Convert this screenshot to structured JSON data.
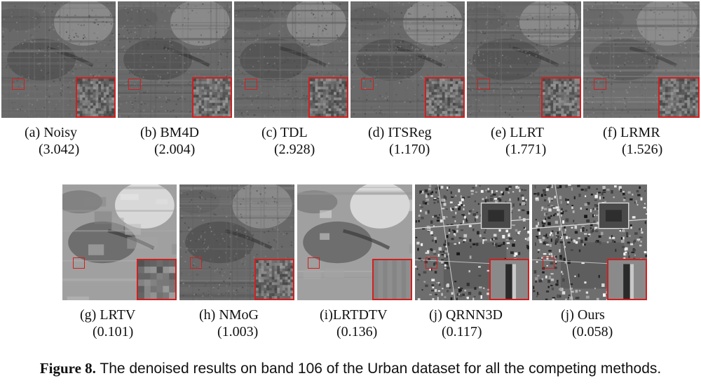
{
  "panels": [
    {
      "id": "a",
      "label": "(a) Noisy",
      "score": "(3.042)",
      "style": "noisy"
    },
    {
      "id": "b",
      "label": "(b) BM4D",
      "score": "(2.004)",
      "style": "noisy"
    },
    {
      "id": "c",
      "label": "(c) TDL",
      "score": "(2.928)",
      "style": "noisy"
    },
    {
      "id": "d",
      "label": "(d) ITSReg",
      "score": "(1.170)",
      "style": "noisy"
    },
    {
      "id": "e",
      "label": "(e) LLRT",
      "score": "(1.771)",
      "style": "noisy"
    },
    {
      "id": "f",
      "label": "(f) LRMR",
      "score": "(1.526)",
      "style": "smooth"
    },
    {
      "id": "g",
      "label": "(g) LRTV",
      "score": "(0.101)",
      "style": "bright"
    },
    {
      "id": "h",
      "label": "(h) NMoG",
      "score": "(1.003)",
      "style": "noisy"
    },
    {
      "id": "i",
      "label": "(i)LRTDTV",
      "score": "(0.136)",
      "style": "bright"
    },
    {
      "id": "j",
      "label": "(j) QRNN3D",
      "score": "(0.117)",
      "style": "urban"
    },
    {
      "id": "k",
      "label": "(j) Ours",
      "score": "(0.058)",
      "style": "urban"
    }
  ],
  "figure_caption": {
    "label": "Figure 8.",
    "text": " The denoised results on band 106 of the Urban dataset for all the competing methods."
  },
  "colors": {
    "roi": "#d21f1f",
    "text": "#111111"
  }
}
